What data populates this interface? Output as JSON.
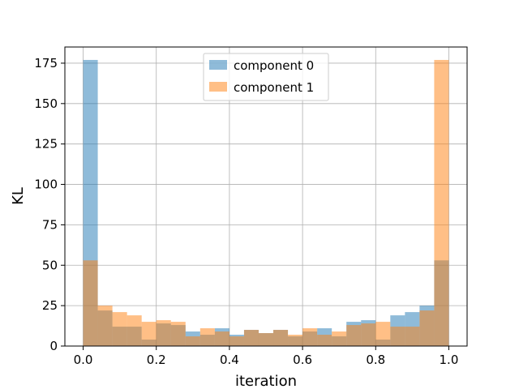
{
  "chart_data": {
    "type": "bar",
    "title": "",
    "xlabel": "iteration",
    "ylabel": "KL",
    "xlim": [
      -0.05,
      1.05
    ],
    "ylim": [
      0,
      185
    ],
    "xticks": [
      "0.0",
      "0.2",
      "0.4",
      "0.6",
      "0.8",
      "1.0"
    ],
    "xtick_values": [
      0.0,
      0.2,
      0.4,
      0.6,
      0.8,
      1.0
    ],
    "yticks": [
      "0",
      "25",
      "50",
      "75",
      "100",
      "125",
      "150",
      "175"
    ],
    "ytick_values": [
      0,
      25,
      50,
      75,
      100,
      125,
      150,
      175
    ],
    "grid": true,
    "legend_position": "top-center",
    "bin_edges": [
      0.0,
      0.04,
      0.08,
      0.12,
      0.16,
      0.2,
      0.24,
      0.28,
      0.32,
      0.36,
      0.4,
      0.44,
      0.48,
      0.52,
      0.56,
      0.6,
      0.64,
      0.68,
      0.72,
      0.76,
      0.8,
      0.84,
      0.88,
      0.92,
      0.96,
      1.0
    ],
    "series": [
      {
        "name": "component 0",
        "color": "#1f77b4",
        "values": [
          177,
          22,
          12,
          12,
          4,
          14,
          13,
          9,
          7,
          11,
          7,
          10,
          8,
          10,
          6,
          9,
          11,
          6,
          15,
          16,
          4,
          19,
          21,
          25,
          53
        ]
      },
      {
        "name": "component 1",
        "color": "#ff7f0e",
        "values": [
          53,
          25,
          21,
          19,
          15,
          16,
          15,
          6,
          11,
          9,
          6,
          10,
          8,
          10,
          7,
          11,
          7,
          9,
          13,
          14,
          15,
          12,
          12,
          22,
          177
        ]
      }
    ]
  }
}
